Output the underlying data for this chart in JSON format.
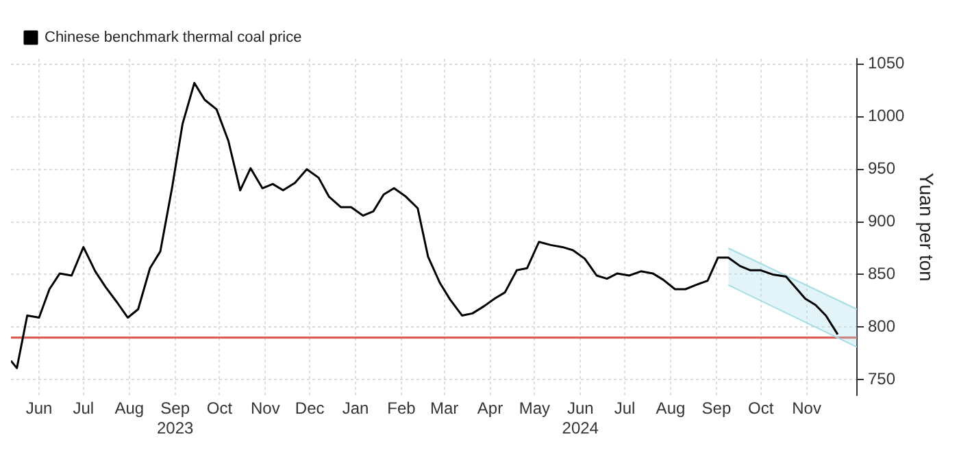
{
  "chart_data": {
    "type": "line",
    "ylabel": "Yuan per ton",
    "legend": "top left",
    "grid": true,
    "marker": "none",
    "line_style": "solid",
    "xlim": [
      "2023-05-13",
      "2024-12-05"
    ],
    "xticks": [
      {
        "value": "2023-06-01",
        "label": "Jun"
      },
      {
        "value": "2023-07-01",
        "label": "Jul"
      },
      {
        "value": "2023-08-01",
        "label": "Aug"
      },
      {
        "value": "2023-09-01",
        "label": "Sep\n2023"
      },
      {
        "value": "2023-10-01",
        "label": "Oct"
      },
      {
        "value": "2023-11-01",
        "label": "Nov"
      },
      {
        "value": "2023-12-01",
        "label": "Dec"
      },
      {
        "value": "2024-01-01",
        "label": "Jan"
      },
      {
        "value": "2024-02-01",
        "label": "Feb"
      },
      {
        "value": "2024-03-01",
        "label": "Mar"
      },
      {
        "value": "2024-04-01",
        "label": "Apr"
      },
      {
        "value": "2024-05-01",
        "label": "May"
      },
      {
        "value": "2024-06-01",
        "label": "Jun\n2024"
      },
      {
        "value": "2024-07-01",
        "label": "Jul"
      },
      {
        "value": "2024-08-01",
        "label": "Aug"
      },
      {
        "value": "2024-09-01",
        "label": "Sep"
      },
      {
        "value": "2024-10-01",
        "label": "Oct"
      },
      {
        "value": "2024-11-01",
        "label": "Nov"
      }
    ],
    "ylim": [
      735,
      1055
    ],
    "yticks": [
      750,
      800,
      850,
      900,
      950,
      1000,
      1050
    ],
    "ref_lines": [
      {
        "axis": "y",
        "value": 790,
        "color": "#d9534f"
      }
    ],
    "series": [
      {
        "name": "Chinese benchmark thermal coal price",
        "color": "#000000",
        "x": [
          "2023-05-13",
          "2023-05-17",
          "2023-05-24",
          "2023-06-01",
          "2023-06-08",
          "2023-06-15",
          "2023-06-23",
          "2023-07-01",
          "2023-07-09",
          "2023-07-16",
          "2023-07-24",
          "2023-07-31",
          "2023-08-07",
          "2023-08-15",
          "2023-08-22",
          "2023-08-30",
          "2023-09-06",
          "2023-09-14",
          "2023-09-21",
          "2023-09-29",
          "2023-10-07",
          "2023-10-15",
          "2023-10-22",
          "2023-10-30",
          "2023-11-06",
          "2023-11-13",
          "2023-11-21",
          "2023-11-29",
          "2023-12-07",
          "2023-12-14",
          "2023-12-22",
          "2023-12-29",
          "2024-01-06",
          "2024-01-13",
          "2024-01-20",
          "2024-01-27",
          "2024-02-04",
          "2024-02-12",
          "2024-02-19",
          "2024-02-27",
          "2024-03-05",
          "2024-03-13",
          "2024-03-20",
          "2024-03-28",
          "2024-04-04",
          "2024-04-11",
          "2024-04-19",
          "2024-04-26",
          "2024-05-04",
          "2024-05-12",
          "2024-05-20",
          "2024-05-27",
          "2024-06-04",
          "2024-06-12",
          "2024-06-19",
          "2024-06-26",
          "2024-07-04",
          "2024-07-12",
          "2024-07-20",
          "2024-07-27",
          "2024-08-04",
          "2024-08-11",
          "2024-08-18",
          "2024-08-26",
          "2024-09-02",
          "2024-09-09",
          "2024-09-17",
          "2024-09-24",
          "2024-10-01",
          "2024-10-09",
          "2024-10-18",
          "2024-10-23",
          "2024-10-31",
          "2024-11-07",
          "2024-11-14",
          "2024-11-22"
        ],
        "values": [
          768,
          761,
          811,
          809,
          836,
          851,
          849,
          876,
          853,
          838,
          823,
          809,
          817,
          856,
          872,
          933,
          993,
          1032,
          1016,
          1007,
          977,
          930,
          951,
          932,
          936,
          930,
          937,
          950,
          942,
          924,
          914,
          914,
          906,
          910,
          926,
          932,
          924,
          913,
          867,
          842,
          826,
          811,
          813,
          820,
          827,
          833,
          854,
          856,
          881,
          878,
          876,
          873,
          865,
          849,
          846,
          851,
          849,
          853,
          851,
          845,
          836,
          836,
          840,
          844,
          866,
          866,
          858,
          854,
          854,
          850,
          848,
          840,
          827,
          821,
          811,
          793
        ]
      },
      {
        "color": "#a8dde6",
        "x": [
          "2024-09-09",
          "2024-12-05"
        ],
        "values": [
          875,
          817
        ]
      },
      {
        "color": "#a8dde6",
        "x": [
          "2024-09-09",
          "2024-12-05"
        ],
        "values": [
          840,
          781
        ],
        "lower": [
          840,
          781
        ],
        "upper": [
          875,
          817
        ]
      }
    ]
  }
}
